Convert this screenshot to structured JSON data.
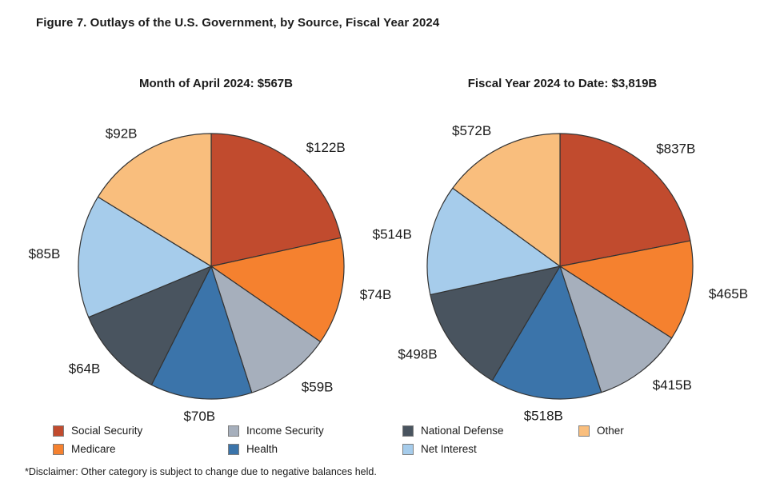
{
  "page": {
    "title": "Figure 7. Outlays of the U.S. Government, by Source, Fiscal Year 2024",
    "disclaimer": "*Disclaimer: Other category is subject to change due to negative balances held."
  },
  "palette": {
    "social_security": "#c14b2e",
    "medicare": "#f5812f",
    "income_security": "#a6afbc",
    "health": "#3b74aa",
    "national_defense": "#49545f",
    "net_interest": "#a6cceb",
    "other": "#f9be7d",
    "slice_outline": "#333333",
    "text": "#1a1a1a"
  },
  "chart_data": [
    {
      "type": "pie",
      "title": "Month of April 2024: $567B",
      "total": 567,
      "start_angle": "12 o'clock, clockwise",
      "label_position": "outside",
      "categories": [
        "Social Security",
        "Medicare",
        "Income Security",
        "Health",
        "National Defense",
        "Net Interest",
        "Other"
      ],
      "values": [
        122,
        74,
        59,
        70,
        64,
        85,
        92
      ],
      "labels": [
        "$122B",
        "$74B",
        "$59B",
        "$70B",
        "$64B",
        "$85B",
        "$92B"
      ],
      "colors": [
        "#c14b2e",
        "#f5812f",
        "#a6afbc",
        "#3b74aa",
        "#49545f",
        "#a6cceb",
        "#f9be7d"
      ]
    },
    {
      "type": "pie",
      "title": "Fiscal Year 2024 to Date: $3,819B",
      "total": 3819,
      "start_angle": "12 o'clock, clockwise",
      "label_position": "outside",
      "categories": [
        "Social Security",
        "Medicare",
        "Income Security",
        "Health",
        "National Defense",
        "Net Interest",
        "Other"
      ],
      "values": [
        837,
        465,
        415,
        518,
        498,
        514,
        572
      ],
      "labels": [
        "$837B",
        "$465B",
        "$415B",
        "$518B",
        "$498B",
        "$514B",
        "$572B"
      ],
      "colors": [
        "#c14b2e",
        "#f5812f",
        "#a6afbc",
        "#3b74aa",
        "#49545f",
        "#a6cceb",
        "#f9be7d"
      ]
    }
  ],
  "legend": {
    "columns": [
      [
        {
          "label": "Social Security",
          "color": "#c14b2e"
        },
        {
          "label": "Medicare",
          "color": "#f5812f"
        }
      ],
      [
        {
          "label": "Income Security",
          "color": "#a6afbc"
        },
        {
          "label": "Health",
          "color": "#3b74aa"
        }
      ],
      [
        {
          "label": "National Defense",
          "color": "#49545f"
        },
        {
          "label": "Net Interest",
          "color": "#a6cceb"
        }
      ],
      [
        {
          "label": "Other",
          "color": "#f9be7d"
        }
      ]
    ]
  }
}
